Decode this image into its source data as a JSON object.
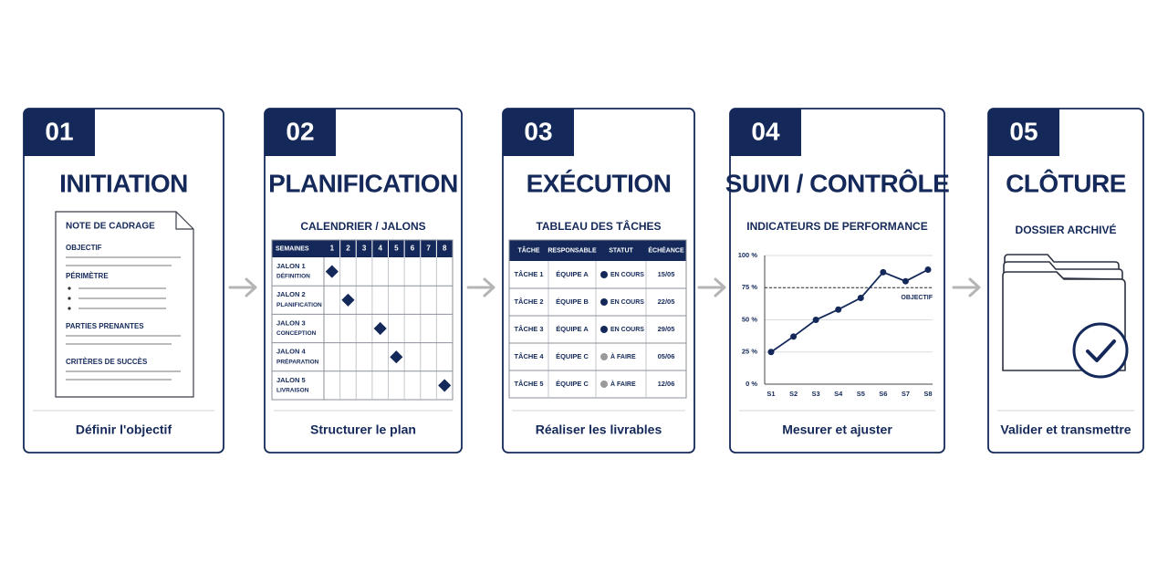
{
  "steps": [
    {
      "number": "01",
      "title": "INITIATION",
      "footer": "Définir l'objectif"
    },
    {
      "number": "02",
      "title": "PLANIFICATION",
      "subtitle": "CALENDRIER / JALONS",
      "footer": "Structurer le plan"
    },
    {
      "number": "03",
      "title": "EXÉCUTION",
      "subtitle": "TABLEAU DES TÂCHES",
      "footer": "Réaliser les livrables"
    },
    {
      "number": "04",
      "title": "SUIVI / CONTRÔLE",
      "subtitle": "INDICATEURS DE PERFORMANCE",
      "footer": "Mesurer et ajuster"
    },
    {
      "number": "05",
      "title": "CLÔTURE",
      "subtitle": "DOSSIER ARCHIVÉ",
      "footer": "Valider et transmettre"
    }
  ],
  "document": {
    "title": "NOTE DE CADRAGE",
    "sections": [
      "OBJECTIF",
      "PÉRIMÈTRE",
      "PARTIES PRENANTES",
      "CRITÈRES DE SUCCÈS"
    ]
  },
  "gantt": {
    "header": "SEMAINES",
    "weeks": [
      1,
      2,
      3,
      4,
      5,
      6,
      7,
      8
    ],
    "rows": [
      {
        "name": "JALON 1",
        "phase": "DÉFINITION",
        "week": 1
      },
      {
        "name": "JALON 2",
        "phase": "PLANIFICATION",
        "week": 2
      },
      {
        "name": "JALON 3",
        "phase": "CONCEPTION",
        "week": 4
      },
      {
        "name": "JALON 4",
        "phase": "PRÉPARATION",
        "week": 5
      },
      {
        "name": "JALON 5",
        "phase": "LIVRAISON",
        "week": 8
      }
    ]
  },
  "tasks": {
    "headers": [
      "TÂCHE",
      "RESPONSABLE",
      "STATUT",
      "ÉCHÉANCE"
    ],
    "rows": [
      {
        "task": "TÂCHE 1",
        "owner": "ÉQUIPE A",
        "status": "EN COURS",
        "due": "15/05",
        "dot": "#14295a"
      },
      {
        "task": "TÂCHE 2",
        "owner": "ÉQUIPE B",
        "status": "EN COURS",
        "due": "22/05",
        "dot": "#14295a"
      },
      {
        "task": "TÂCHE 3",
        "owner": "ÉQUIPE A",
        "status": "EN COURS",
        "due": "29/05",
        "dot": "#14295a"
      },
      {
        "task": "TÂCHE 4",
        "owner": "ÉQUIPE C",
        "status": "À FAIRE",
        "due": "05/06",
        "dot": "#9a9a9a"
      },
      {
        "task": "TÂCHE 5",
        "owner": "ÉQUIPE C",
        "status": "À FAIRE",
        "due": "12/06",
        "dot": "#9a9a9a"
      }
    ]
  },
  "chart": {
    "type": "line",
    "categories": [
      "S1",
      "S2",
      "S3",
      "S4",
      "S5",
      "S6",
      "S7",
      "S8"
    ],
    "values": [
      25,
      37,
      50,
      58,
      67,
      87,
      80,
      89
    ],
    "color": "#14295a",
    "ylim": [
      0,
      100
    ],
    "yticks": [
      {
        "value": 0,
        "label": "0 %"
      },
      {
        "value": 25,
        "label": "25 %"
      },
      {
        "value": 50,
        "label": "50 %"
      },
      {
        "value": 75,
        "label": "75 %"
      },
      {
        "value": 100,
        "label": "100 %"
      }
    ],
    "grid": true,
    "target": 75,
    "target_label": "OBJECTIF"
  }
}
